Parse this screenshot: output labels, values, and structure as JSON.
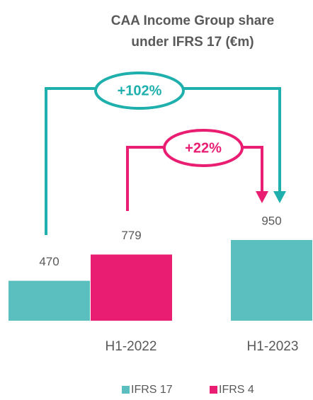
{
  "chart_data": {
    "type": "bar",
    "title": [
      "CAA Income Group share",
      "under IFRS 17 (€m)"
    ],
    "categories": [
      "H1-2022",
      "H1-2023"
    ],
    "series": [
      {
        "name": "IFRS 17",
        "color": "#5bbfbf",
        "values": [
          470,
          950
        ]
      },
      {
        "name": "IFRS 4",
        "color": "#e91e73",
        "values": [
          779,
          null
        ]
      }
    ],
    "annotations": [
      "+102%",
      "+22%"
    ]
  }
}
